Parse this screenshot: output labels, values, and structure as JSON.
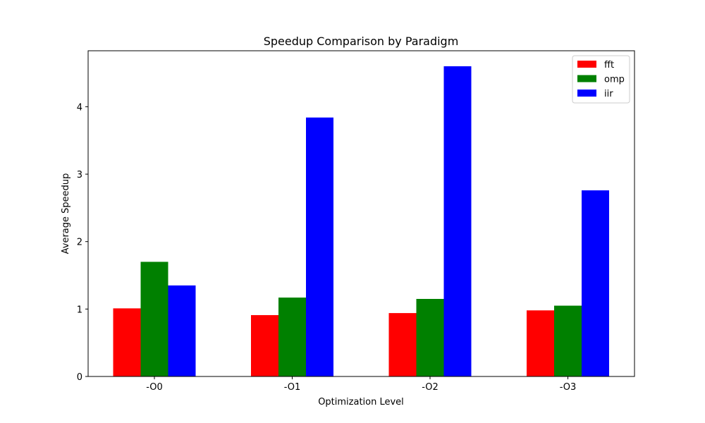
{
  "chart_data": {
    "type": "bar",
    "title": "Speedup Comparison by Paradigm",
    "xlabel": "Optimization Level",
    "ylabel": "Average Speedup",
    "categories": [
      "-O0",
      "-O1",
      "-O2",
      "-O3"
    ],
    "series": [
      {
        "name": "fft",
        "color": "#ff0000",
        "values": [
          1.01,
          0.91,
          0.94,
          0.98
        ]
      },
      {
        "name": "omp",
        "color": "#008000",
        "values": [
          1.7,
          1.17,
          1.15,
          1.05
        ]
      },
      {
        "name": "iir",
        "color": "#0000ff",
        "values": [
          1.35,
          3.84,
          4.6,
          2.76
        ]
      }
    ],
    "yticks": [
      0,
      1,
      2,
      3,
      4
    ],
    "ylim": [
      0,
      4.83
    ],
    "grid": false,
    "legend_position": "top-right"
  }
}
